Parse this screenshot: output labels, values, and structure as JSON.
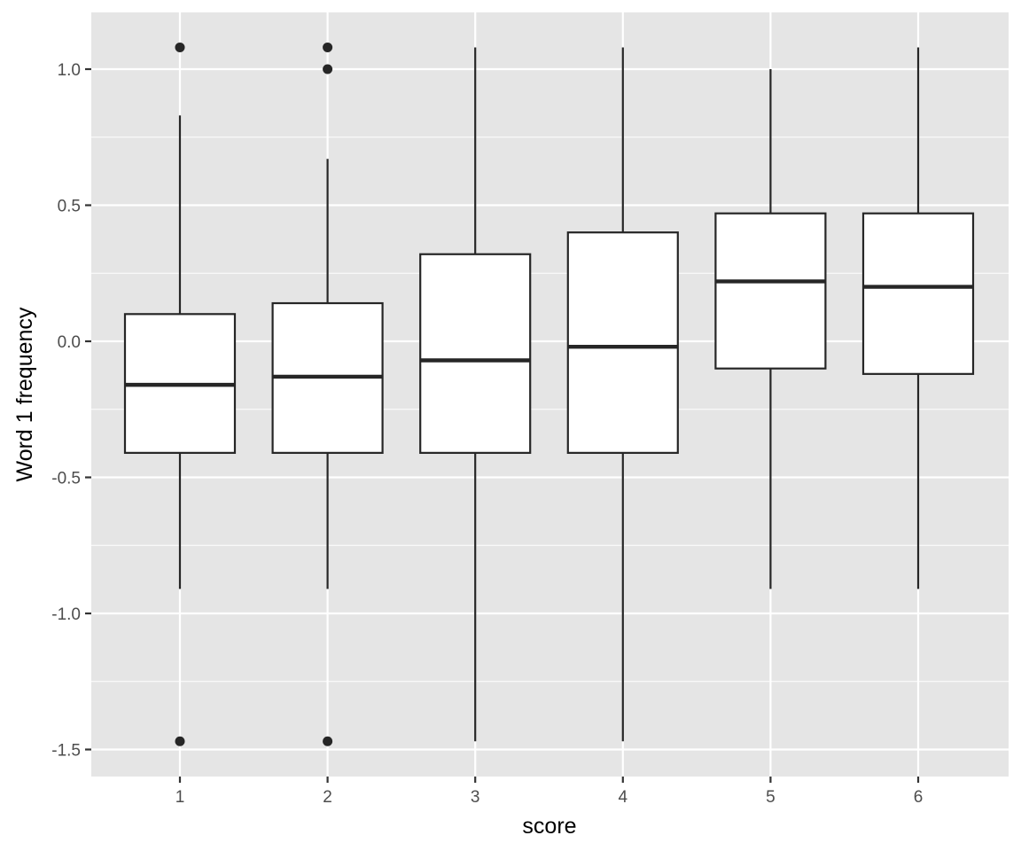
{
  "chart_data": {
    "type": "boxplot",
    "xlabel": "score",
    "ylabel": "Word 1 frequency",
    "categories": [
      "1",
      "2",
      "3",
      "4",
      "5",
      "6"
    ],
    "ylim": [
      -1.6,
      1.2
    ],
    "y_ticks": [
      -1.5,
      -1.0,
      -0.5,
      0.0,
      0.5,
      1.0
    ],
    "y_tick_labels": [
      "-1.5",
      "-1.0",
      "-0.5",
      "0.0",
      "0.5",
      "1.0"
    ],
    "grid": true,
    "boxes": [
      {
        "category": "1",
        "whisker_low": -0.91,
        "q1": -0.41,
        "median": -0.16,
        "q3": 0.1,
        "whisker_high": 0.83,
        "outliers": [
          1.08,
          -1.47
        ]
      },
      {
        "category": "2",
        "whisker_low": -0.91,
        "q1": -0.41,
        "median": -0.13,
        "q3": 0.14,
        "whisker_high": 0.67,
        "outliers": [
          1.08,
          1.0,
          -1.47
        ]
      },
      {
        "category": "3",
        "whisker_low": -1.47,
        "q1": -0.41,
        "median": -0.07,
        "q3": 0.32,
        "whisker_high": 1.08,
        "outliers": []
      },
      {
        "category": "4",
        "whisker_low": -1.47,
        "q1": -0.41,
        "median": -0.02,
        "q3": 0.4,
        "whisker_high": 1.08,
        "outliers": []
      },
      {
        "category": "5",
        "whisker_low": -0.91,
        "q1": -0.1,
        "median": 0.22,
        "q3": 0.47,
        "whisker_high": 1.0,
        "outliers": []
      },
      {
        "category": "6",
        "whisker_low": -0.91,
        "q1": -0.12,
        "median": 0.2,
        "q3": 0.47,
        "whisker_high": 1.08,
        "outliers": []
      }
    ],
    "colors": {
      "panel_background": "#e5e5e5",
      "grid": "#ffffff",
      "box_fill": "#ffffff",
      "box_stroke": "#262626",
      "outlier": "#262626"
    }
  }
}
